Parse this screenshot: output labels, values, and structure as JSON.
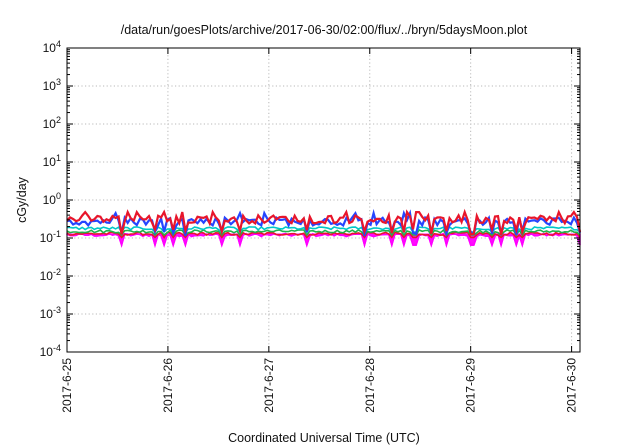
{
  "chart_data": {
    "type": "line",
    "title": "/data/run/goesPlots/archive/2017-06-30/02:00/flux/../bryn/5daysMoon.plot",
    "xlabel": "Coordinated Universal Time (UTC)",
    "ylabel": "cGy/day",
    "yscale": "log",
    "ylim": [
      0.0001,
      10000
    ],
    "yticks": [
      {
        "value": 0.0001,
        "base": "10",
        "exp": "-4"
      },
      {
        "value": 0.001,
        "base": "10",
        "exp": "-3"
      },
      {
        "value": 0.01,
        "base": "10",
        "exp": "-2"
      },
      {
        "value": 0.1,
        "base": "10",
        "exp": "-1"
      },
      {
        "value": 1,
        "base": "10",
        "exp": "0"
      },
      {
        "value": 10,
        "base": "10",
        "exp": "1"
      },
      {
        "value": 100,
        "base": "10",
        "exp": "2"
      },
      {
        "value": 1000,
        "base": "10",
        "exp": "3"
      },
      {
        "value": 10000,
        "base": "10",
        "exp": "4"
      }
    ],
    "xlim": [
      "2017-06-25",
      "2017-06-30 02:00"
    ],
    "xticks": [
      "2017-6-25",
      "2017-6-26",
      "2017-6-27",
      "2017-6-28",
      "2017-6-29",
      "2017-6-30"
    ],
    "grid": true,
    "colors": [
      "#ff00ff",
      "#e8162b",
      "#00c8c8",
      "#22b14c",
      "#2545ff",
      "#e8162b"
    ],
    "series": [
      {
        "color": "#ff00ff",
        "baseline": 0.12,
        "dips_to": 0.065
      },
      {
        "color": "#e8162b",
        "baseline": 0.13
      },
      {
        "color": "#22b14c",
        "baseline": 0.15
      },
      {
        "color": "#00c8c8",
        "baseline": 0.18
      },
      {
        "color": "#2545ff",
        "baseline": 0.28,
        "min": 0.11,
        "max": 0.45
      },
      {
        "color": "#e8162b",
        "baseline": 0.32,
        "min": 0.12,
        "max": 0.48
      }
    ]
  }
}
